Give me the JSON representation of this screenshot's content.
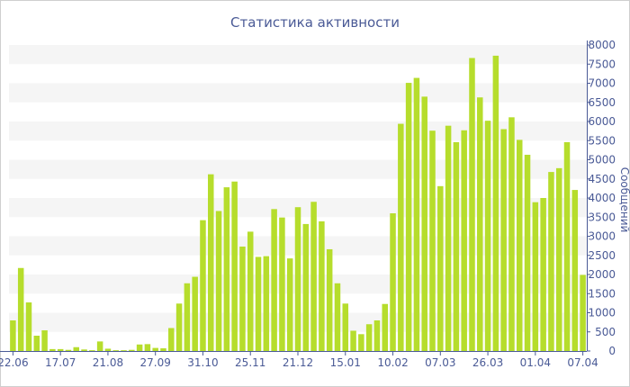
{
  "chart_data": {
    "type": "bar",
    "title": "Статистика активности",
    "ylabel": "Сообщений",
    "xlabel": "",
    "ylim": [
      0,
      8000
    ],
    "yticks": [
      0,
      500,
      1000,
      1500,
      2000,
      2500,
      3000,
      3500,
      4000,
      4500,
      5000,
      5500,
      6000,
      6500,
      7000,
      7500,
      8000
    ],
    "y_axis_position": "right",
    "bar_color": "#b6dd2c",
    "band_color": "#f5f5f5",
    "x_tick_labels": [
      "22.06",
      "17.07",
      "21.08",
      "27.09",
      "31.10",
      "25.11",
      "21.12",
      "15.01",
      "10.02",
      "07.03",
      "26.03",
      "01.04",
      "07.04"
    ],
    "x_tick_bar_index": [
      0,
      6,
      12,
      18,
      24,
      30,
      36,
      42,
      48,
      54,
      60,
      66,
      72
    ],
    "values": [
      800,
      2170,
      1270,
      400,
      540,
      50,
      50,
      30,
      100,
      40,
      20,
      250,
      60,
      20,
      20,
      30,
      170,
      180,
      80,
      70,
      600,
      1240,
      1770,
      1940,
      3420,
      4620,
      3660,
      4280,
      4430,
      2730,
      3120,
      2460,
      2480,
      3710,
      3490,
      2420,
      3760,
      3320,
      3900,
      3390,
      2660,
      1770,
      1240,
      530,
      440,
      700,
      800,
      1230,
      3600,
      5940,
      7010,
      7140,
      6650,
      5760,
      4310,
      5890,
      5460,
      5770,
      7660,
      6630,
      6020,
      7720,
      5800,
      6110,
      5520,
      5130,
      3890,
      4000,
      4680,
      4780,
      5460,
      4210,
      1990
    ]
  }
}
